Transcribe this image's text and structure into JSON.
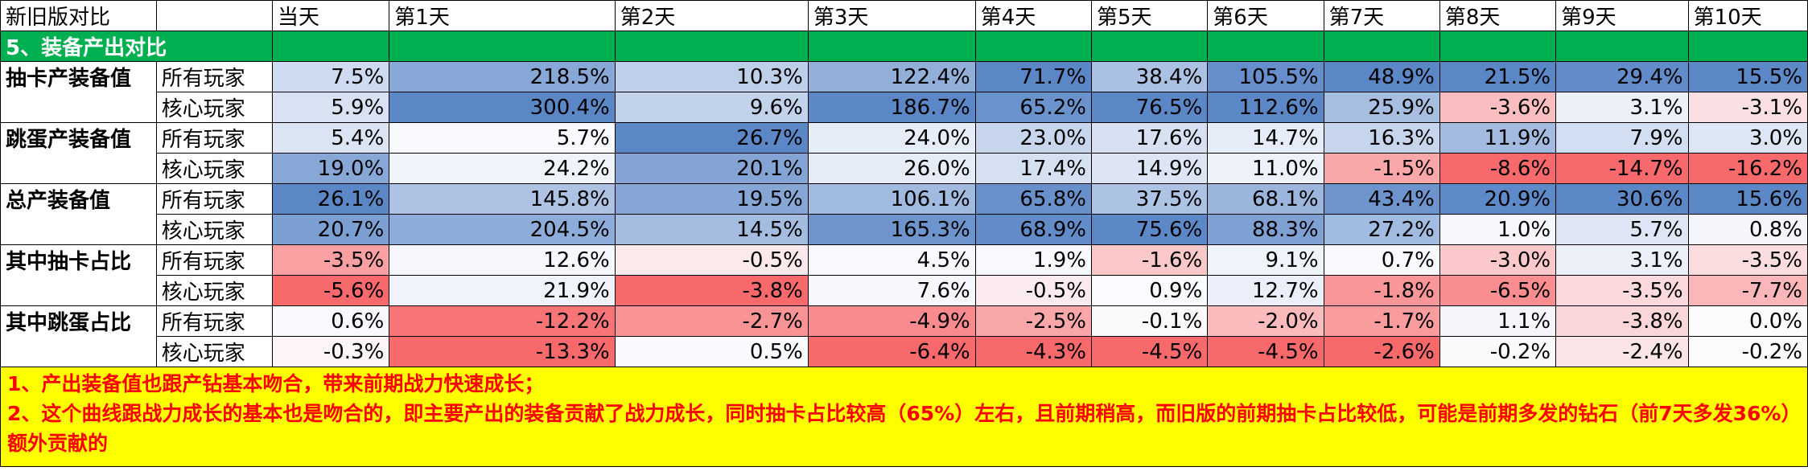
{
  "header": {
    "title": "新旧版对比",
    "days": [
      "当天",
      "第1天",
      "第2天",
      "第3天",
      "第4天",
      "第5天",
      "第6天",
      "第7天",
      "第8天",
      "第9天",
      "第10天"
    ]
  },
  "section": {
    "label": "5、装备产出对比"
  },
  "rows": [
    {
      "metric": "抽卡产装备值",
      "player": "所有玩家",
      "values": [
        "7.5%",
        "218.5%",
        "10.3%",
        "122.4%",
        "71.7%",
        "38.4%",
        "105.5%",
        "48.9%",
        "21.5%",
        "29.4%",
        "15.5%"
      ]
    },
    {
      "metric": "",
      "player": "核心玩家",
      "values": [
        "5.9%",
        "300.4%",
        "9.6%",
        "186.7%",
        "65.2%",
        "76.5%",
        "112.6%",
        "25.9%",
        "-3.6%",
        "3.1%",
        "-3.1%"
      ]
    },
    {
      "metric": "跳蛋产装备值",
      "player": "所有玩家",
      "values": [
        "5.4%",
        "5.7%",
        "26.7%",
        "24.0%",
        "23.0%",
        "17.6%",
        "14.7%",
        "16.3%",
        "11.9%",
        "7.9%",
        "3.0%"
      ]
    },
    {
      "metric": "",
      "player": "核心玩家",
      "values": [
        "19.0%",
        "24.2%",
        "20.1%",
        "26.0%",
        "17.4%",
        "14.9%",
        "11.0%",
        "-1.5%",
        "-8.6%",
        "-14.7%",
        "-16.2%"
      ]
    },
    {
      "metric": "总产装备值",
      "player": "所有玩家",
      "values": [
        "26.1%",
        "145.8%",
        "19.5%",
        "106.1%",
        "65.8%",
        "37.5%",
        "68.1%",
        "43.4%",
        "20.9%",
        "30.6%",
        "15.6%"
      ]
    },
    {
      "metric": "",
      "player": "核心玩家",
      "values": [
        "20.7%",
        "204.5%",
        "14.5%",
        "165.3%",
        "68.9%",
        "75.6%",
        "88.3%",
        "27.2%",
        "1.0%",
        "5.7%",
        "0.8%"
      ]
    },
    {
      "metric": "其中抽卡占比",
      "player": "所有玩家",
      "values": [
        "-3.5%",
        "12.6%",
        "-0.5%",
        "4.5%",
        "1.9%",
        "-1.6%",
        "9.1%",
        "0.7%",
        "-3.0%",
        "3.1%",
        "-3.5%"
      ]
    },
    {
      "metric": "",
      "player": "核心玩家",
      "values": [
        "-5.6%",
        "21.9%",
        "-3.8%",
        "7.6%",
        "-0.5%",
        "0.9%",
        "12.7%",
        "-1.8%",
        "-6.5%",
        "-3.5%",
        "-7.7%"
      ]
    },
    {
      "metric": "其中跳蛋占比",
      "player": "所有玩家",
      "values": [
        "0.6%",
        "-12.2%",
        "-2.7%",
        "-4.9%",
        "-2.5%",
        "-0.1%",
        "-2.0%",
        "-1.7%",
        "1.1%",
        "-3.8%",
        "0.0%"
      ]
    },
    {
      "metric": "",
      "player": "核心玩家",
      "values": [
        "-0.3%",
        "-13.3%",
        "0.5%",
        "-6.4%",
        "-4.3%",
        "-4.5%",
        "-4.5%",
        "-2.6%",
        "-0.2%",
        "-2.4%",
        "-0.2%"
      ]
    }
  ],
  "notes": [
    "1、产出装备值也跟产钻基本吻合，带来前期战力快速成长；",
    "2、这个曲线跟战力成长的基本也是吻合的，即主要产出的装备贡献了战力成长，同时抽卡占比较高（65%）左右，且前期稍高，而旧版的前期抽卡占比较低，可能是前期多发的钻石（前7天多发36%）额外贡献的"
  ],
  "colors": {
    "section_bg": "#00b050",
    "note_bg": "#ffff00",
    "note_text": "#ff0000",
    "positive_max": "#5b87c7",
    "negative_max": "#f8696b"
  }
}
